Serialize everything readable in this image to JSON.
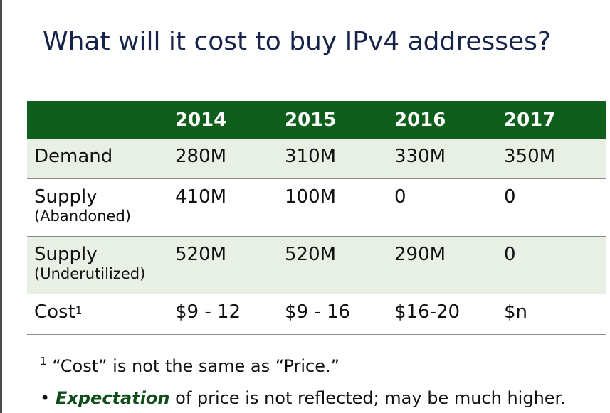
{
  "slide": {
    "title": "What will it cost to buy IPv4 addresses?"
  },
  "table": {
    "headers": [
      "",
      "2014",
      "2015",
      "2016",
      "2017"
    ],
    "rows": [
      {
        "label": "Demand",
        "sublabel": "",
        "values": [
          "280M",
          "310M",
          "330M",
          "350M"
        ]
      },
      {
        "label": "Supply",
        "sublabel": "(Abandoned)",
        "values": [
          "410M",
          "100M",
          "0",
          "0"
        ]
      },
      {
        "label": "Supply",
        "sublabel": "(Underutilized)",
        "values": [
          "520M",
          "520M",
          "290M",
          "0"
        ]
      },
      {
        "label": "Cost",
        "sublabel": "",
        "label_sup": "1",
        "values": [
          "$9 - 12",
          "$9 - 16",
          "$16-20",
          "$n"
        ]
      }
    ]
  },
  "footnote": {
    "marker": "1",
    "text": "“Cost” is not the same as “Price.”"
  },
  "bullet": {
    "marker": "•",
    "emphasis": "Expectation",
    "rest": " of price is not reflected; may be much higher."
  },
  "colors": {
    "header_bg": "#0f5e1c",
    "shaded_row_bg": "#e8efe5",
    "title_color": "#17244a",
    "emphasis_color": "#0f4d1a"
  }
}
